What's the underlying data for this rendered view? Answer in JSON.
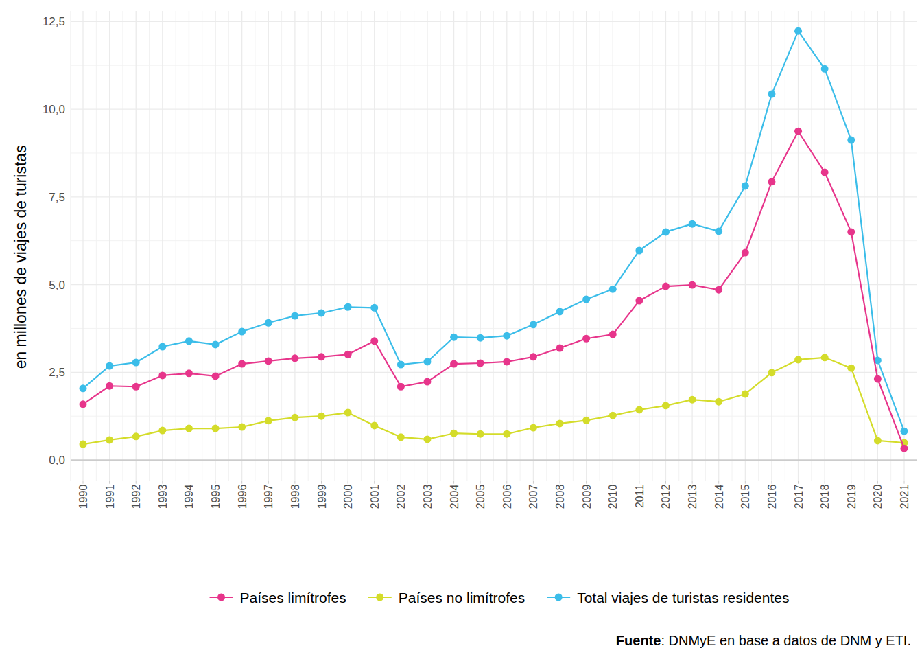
{
  "chart_data": {
    "type": "line",
    "y_label": "en millones de viajes de turistas",
    "caption": {
      "bold": "Fuente",
      "text": ": DNMyE en base a datos de DNM y ETI."
    },
    "categories": [
      "1990",
      "1991",
      "1992",
      "1993",
      "1994",
      "1995",
      "1996",
      "1997",
      "1998",
      "1999",
      "2000",
      "2001",
      "2002",
      "2003",
      "2004",
      "2005",
      "2006",
      "2007",
      "2008",
      "2009",
      "2010",
      "2011",
      "2012",
      "2013",
      "2014",
      "2015",
      "2016",
      "2017",
      "2018",
      "2019",
      "2020",
      "2021"
    ],
    "series": [
      {
        "name": "Países limítrofes",
        "color": "#e7358b",
        "marker": "circle",
        "values": [
          1.59,
          2.11,
          2.09,
          2.41,
          2.47,
          2.39,
          2.74,
          2.82,
          2.9,
          2.94,
          3.01,
          3.39,
          2.09,
          2.23,
          2.74,
          2.76,
          2.8,
          2.94,
          3.19,
          3.46,
          3.58,
          4.54,
          4.95,
          4.99,
          4.85,
          5.91,
          7.93,
          9.37,
          8.2,
          6.5,
          2.31,
          0.33
        ]
      },
      {
        "name": "Países no limítrofes",
        "color": "#d4dc2a",
        "marker": "circle",
        "values": [
          0.45,
          0.57,
          0.67,
          0.84,
          0.9,
          0.9,
          0.94,
          1.12,
          1.21,
          1.25,
          1.35,
          0.98,
          0.65,
          0.59,
          0.76,
          0.74,
          0.74,
          0.92,
          1.04,
          1.13,
          1.27,
          1.43,
          1.55,
          1.72,
          1.66,
          1.88,
          2.49,
          2.86,
          2.92,
          2.62,
          0.55,
          0.49
        ]
      },
      {
        "name": "Total viajes de turistas residentes",
        "color": "#3bbde9",
        "marker": "circle",
        "values": [
          2.04,
          2.68,
          2.78,
          3.23,
          3.39,
          3.29,
          3.66,
          3.91,
          4.11,
          4.19,
          4.36,
          4.34,
          2.72,
          2.8,
          3.5,
          3.48,
          3.54,
          3.86,
          4.23,
          4.58,
          4.87,
          5.97,
          6.5,
          6.73,
          6.52,
          7.81,
          10.43,
          12.23,
          11.15,
          9.12,
          2.84,
          0.82
        ]
      }
    ],
    "ylim": [
      -0.6,
      12.8
    ],
    "yticks": [
      {
        "value": 0,
        "label": "0,0"
      },
      {
        "value": 2.5,
        "label": "2,5"
      },
      {
        "value": 5,
        "label": "5,0"
      },
      {
        "value": 7.5,
        "label": "7,5"
      },
      {
        "value": 10,
        "label": "10,0"
      },
      {
        "value": 12.5,
        "label": "12,5"
      }
    ],
    "grid": true,
    "legend": "bottom"
  }
}
